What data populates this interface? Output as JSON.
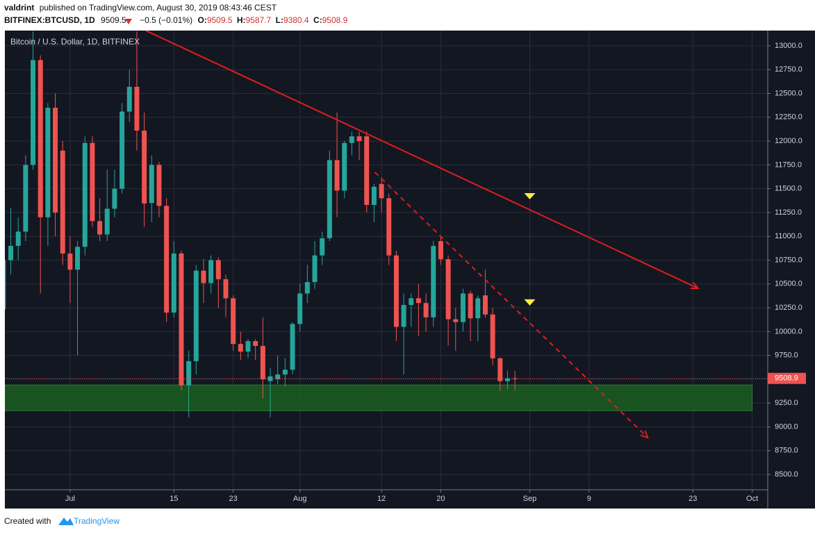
{
  "header": {
    "author": "valdrint",
    "published": "published on TradingView.com, August 30, 2019 08:43:46 CEST",
    "symbol": "BITFINEX:BTCUSD, 1D",
    "change": "−0.5 (−0.01%)",
    "ohlc_labels": [
      "O:",
      "H:",
      "L:",
      "C:"
    ]
  },
  "footer": {
    "created": "Created with",
    "brand": "TradingView"
  },
  "chart_data": {
    "type": "candlestick",
    "title": "Bitcoin / U.S. Dollar, 1D, BITFINEX",
    "up_color": "#26a69a",
    "down_color": "#ef5350",
    "background": "#131722",
    "grid": true,
    "x": [
      173,
      174,
      175,
      176,
      177,
      178,
      179,
      180,
      181,
      182,
      183,
      184,
      185,
      186,
      187,
      188,
      189,
      190,
      191,
      192,
      193,
      194,
      195,
      196,
      197,
      198,
      199,
      200,
      201,
      202,
      203,
      204,
      205,
      206,
      207,
      208,
      209,
      210,
      211,
      212,
      213,
      214,
      215,
      216,
      217,
      218,
      219,
      220,
      221,
      222,
      223,
      224,
      225,
      226,
      227,
      228,
      229,
      230,
      231,
      232,
      233,
      234,
      235,
      236,
      237,
      238,
      239,
      240,
      241,
      242
    ],
    "open": [
      10235,
      10750,
      10900,
      11050,
      11750,
      12850,
      11200,
      12350,
      11900,
      10820,
      10650,
      10890,
      11980,
      11160,
      11020,
      11290,
      11500,
      12310,
      12570,
      12110,
      11350,
      11750,
      11320,
      10200,
      10820,
      9435,
      9690,
      10640,
      10510,
      10750,
      10550,
      10350,
      9870,
      9790,
      9900,
      9850,
      9480,
      9500,
      9550,
      9600,
      10080,
      10400,
      10520,
      10800,
      10980,
      11800,
      11480,
      11980,
      12050,
      12050,
      11330,
      11550,
      11400,
      10800,
      10050,
      10280,
      10350,
      10300,
      10150,
      10950,
      10760,
      10130,
      10100,
      10400,
      10140,
      10380,
      10180,
      9720,
      9480,
      9509.5
    ],
    "high": [
      10850,
      11300,
      11200,
      11850,
      13150,
      12900,
      12400,
      12500,
      12000,
      11000,
      10950,
      12050,
      12050,
      11400,
      11700,
      11700,
      12400,
      12750,
      13150,
      12300,
      11850,
      11780,
      11400,
      10950,
      10850,
      9800,
      10700,
      10760,
      10800,
      10780,
      10600,
      10380,
      10000,
      9920,
      9920,
      10150,
      9620,
      9750,
      9720,
      10100,
      10500,
      10700,
      10950,
      11050,
      11900,
      12300,
      12000,
      12100,
      12100,
      12100,
      11550,
      11620,
      11450,
      10850,
      10400,
      10400,
      10500,
      10400,
      10950,
      11000,
      10800,
      10250,
      10450,
      10430,
      10380,
      10650,
      10250,
      9730,
      9590,
      9587.7
    ],
    "low": [
      10090,
      10600,
      10750,
      10950,
      11700,
      10400,
      10900,
      11000,
      10700,
      10300,
      9750,
      10800,
      11100,
      10950,
      10950,
      11200,
      11450,
      12200,
      11900,
      11100,
      11150,
      11200,
      10100,
      10150,
      9380,
      9100,
      9550,
      10300,
      10400,
      10250,
      10150,
      9800,
      9700,
      9720,
      9700,
      9300,
      9100,
      9450,
      9420,
      9550,
      10000,
      10300,
      10450,
      10700,
      10950,
      11200,
      11400,
      11850,
      11800,
      11250,
      11150,
      11250,
      10700,
      9900,
      9550,
      10050,
      9950,
      10000,
      10050,
      10700,
      9850,
      9800,
      10000,
      9900,
      9900,
      10150,
      9650,
      9380,
      9390,
      9380.4
    ],
    "close": [
      10750,
      10900,
      11050,
      11750,
      12850,
      11200,
      12350,
      11250,
      10820,
      10650,
      10890,
      11980,
      11160,
      11020,
      11290,
      11500,
      12310,
      12570,
      12110,
      11345,
      11750,
      11320,
      10200,
      10820,
      9435,
      9690,
      10640,
      10510,
      10750,
      10550,
      10350,
      9870,
      9790,
      9900,
      9850,
      9500,
      9530,
      9550,
      9600,
      10080,
      10400,
      10520,
      10800,
      10980,
      11800,
      11480,
      11980,
      12050,
      12000,
      11330,
      11520,
      11400,
      10800,
      10050,
      10280,
      10350,
      10300,
      10150,
      10900,
      10760,
      10130,
      10100,
      10400,
      10140,
      10350,
      10180,
      9720,
      9480,
      9510,
      9508.9
    ],
    "xlim": [
      173.2,
      276.1
    ],
    "ylim": [
      8340,
      13160
    ],
    "xticks": [
      {
        "value": 182,
        "label": "Jul"
      },
      15,
      23,
      {
        "value": 213,
        "label": "Aug"
      },
      12,
      20,
      {
        "value": 244,
        "label": "Sep"
      },
      9,
      23,
      {
        "value": 274,
        "label": "Oct"
      }
    ],
    "xtick_days": [
      182,
      196,
      204,
      213,
      224,
      232,
      244,
      252,
      266,
      274
    ],
    "yticks": [
      {
        "value": 8500,
        "label": "8500.0"
      },
      {
        "value": 8750,
        "label": "8750.0"
      },
      {
        "value": 9000,
        "label": "9000.0"
      },
      {
        "value": 9250,
        "label": "9250.0"
      },
      {
        "value": 9500,
        "label": "9500.0"
      },
      {
        "value": 9750,
        "label": "9750.0"
      },
      {
        "value": 10000,
        "label": "10000.0"
      },
      {
        "value": 10250,
        "label": "10250.0"
      },
      {
        "value": 10500,
        "label": "10500.0"
      },
      {
        "value": 10750,
        "label": "10750.0"
      },
      {
        "value": 11000,
        "label": "11000.0"
      },
      {
        "value": 11250,
        "label": "11250.0"
      },
      {
        "value": 11500,
        "label": "11500.0"
      },
      {
        "value": 11750,
        "label": "11750.0"
      },
      {
        "value": 12000,
        "label": "12000.0"
      },
      {
        "value": 12250,
        "label": "12250.0"
      },
      {
        "value": 12500,
        "label": "12500.0"
      },
      {
        "value": 12750,
        "label": "12750.0"
      },
      {
        "value": 13000,
        "label": "13000.0"
      }
    ],
    "support_zone": {
      "low": 9170,
      "high": 9440,
      "end": 274,
      "color": "#1b5e20"
    },
    "trendlines": [
      {
        "color": "#e01e1e",
        "dashed": false,
        "x": [
          192.2,
          266.7
        ],
        "y": [
          13160,
          10455
        ]
      },
      {
        "color": "#e01e1e",
        "dashed": true,
        "x": [
          223.1,
          259.9
        ],
        "y": [
          11673,
          8887
        ]
      }
    ],
    "markers": {
      "color": "#ffeb3b",
      "x": [
        244,
        244
      ],
      "y": [
        11417,
        10302
      ]
    }
  }
}
